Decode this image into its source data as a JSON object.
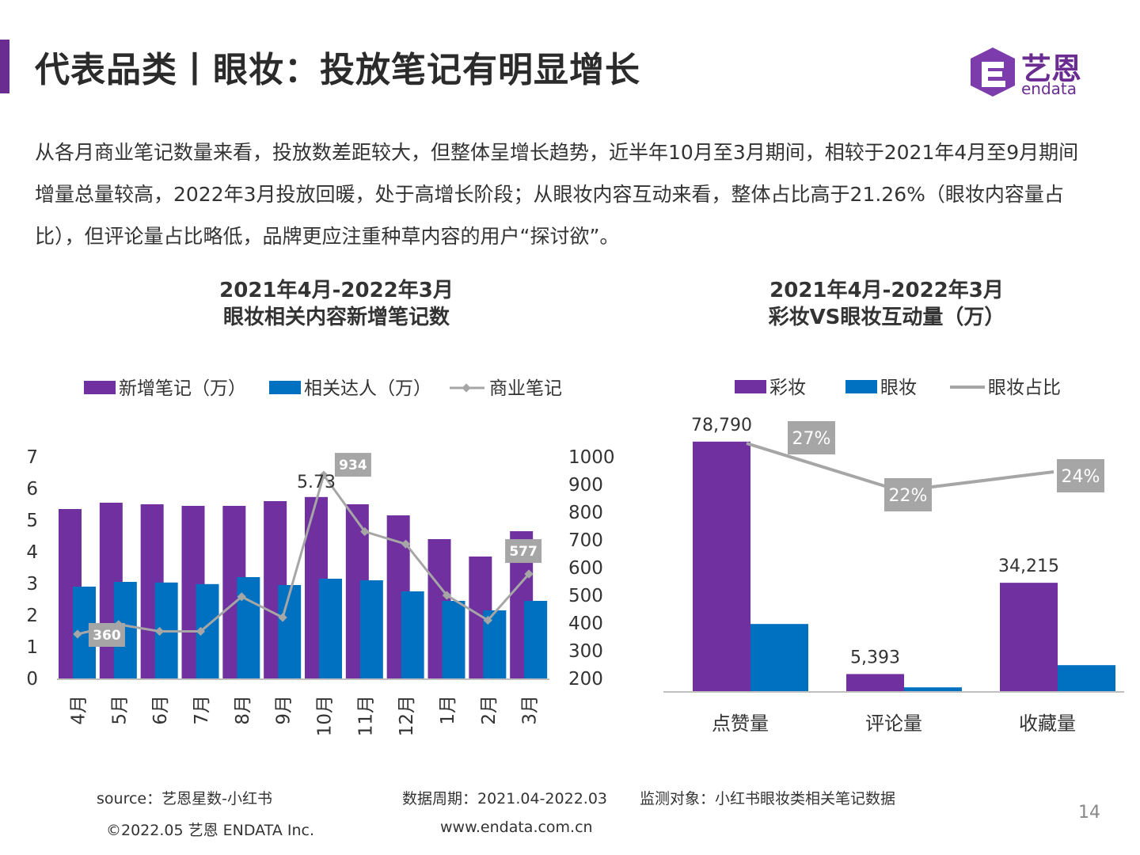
{
  "header": {
    "title": "代表品类丨眼妆：投放笔记有明显增长",
    "accent_color": "#6a2c91",
    "logo": {
      "name": "艺恩",
      "sub": "endata"
    }
  },
  "summary": "从各月商业笔记数量来看，投放数差距较大，但整体呈增长趋势，近半年10月至3月期间，相较于2021年4月至9月期间增量总量较高，2022年3月投放回暖，处于高增长阶段；从眼妆内容互动来看，整体占比高于21.26%（眼妆内容量占比），但评论量占比略低，品牌更应注重种草内容的用户“探讨欲”。",
  "chart_data": [
    {
      "type": "bar",
      "title_line1": "2021年4月-2022年3月",
      "title_line2": "眼妆相关内容新增笔记数",
      "legend": [
        "新增笔记（万）",
        "相关达人（万）",
        "商业笔记"
      ],
      "categories": [
        "4月",
        "5月",
        "6月",
        "7月",
        "8月",
        "9月",
        "10月",
        "11月",
        "12月",
        "1月",
        "2月",
        "3月"
      ],
      "series": [
        {
          "name": "新增笔记（万）",
          "kind": "bar",
          "axis": "left",
          "color": "#7030a0",
          "values": [
            5.35,
            5.55,
            5.5,
            5.45,
            5.45,
            5.6,
            5.73,
            5.5,
            5.15,
            4.4,
            3.85,
            4.65
          ]
        },
        {
          "name": "相关达人（万）",
          "kind": "bar",
          "axis": "left",
          "color": "#0070c0",
          "values": [
            2.9,
            3.05,
            3.03,
            2.98,
            3.2,
            2.95,
            3.15,
            3.1,
            2.75,
            2.45,
            2.15,
            2.45
          ]
        },
        {
          "name": "商业笔记",
          "kind": "line",
          "axis": "right",
          "color": "#a6a6a6",
          "values": [
            360,
            395,
            370,
            370,
            495,
            420,
            934,
            730,
            685,
            500,
            410,
            577
          ]
        }
      ],
      "data_labels": [
        {
          "series": 0,
          "index": 6,
          "text": "5.73"
        },
        {
          "series": 2,
          "index": 0,
          "text": "360"
        },
        {
          "series": 2,
          "index": 6,
          "text": "934"
        },
        {
          "series": 2,
          "index": 11,
          "text": "577"
        }
      ],
      "y_left": {
        "min": 0,
        "max": 7,
        "ticks": [
          "0",
          "1",
          "2",
          "3",
          "4",
          "5",
          "6",
          "7"
        ]
      },
      "y_right": {
        "min": 200,
        "max": 1000,
        "ticks": [
          "200",
          "300",
          "400",
          "500",
          "600",
          "700",
          "800",
          "900",
          "1000"
        ]
      },
      "grid": false,
      "legend_position": "top"
    },
    {
      "type": "bar",
      "title_line1": "2021年4月-2022年3月",
      "title_line2": "彩妆VS眼妆互动量（万）",
      "legend": [
        "彩妆",
        "眼妆",
        "眼妆占比"
      ],
      "categories": [
        "点赞量",
        "评论量",
        "收藏量"
      ],
      "series": [
        {
          "name": "彩妆",
          "kind": "bar",
          "color": "#7030a0",
          "values": [
            78790,
            5393,
            34215
          ]
        },
        {
          "name": "眼妆",
          "kind": "bar",
          "color": "#0070c0",
          "values": [
            21200,
            1190,
            8200
          ]
        },
        {
          "name": "眼妆占比",
          "kind": "line",
          "axis": "ratio",
          "color": "#a6a6a6",
          "values": [
            0.27,
            0.22,
            0.24
          ]
        }
      ],
      "data_labels": [
        {
          "series": 0,
          "index": 0,
          "text": "78,790"
        },
        {
          "series": 0,
          "index": 1,
          "text": "5,393"
        },
        {
          "series": 0,
          "index": 2,
          "text": "34,215"
        },
        {
          "series": 2,
          "index": 0,
          "text": "27%"
        },
        {
          "series": 2,
          "index": 1,
          "text": "22%"
        },
        {
          "series": 2,
          "index": 2,
          "text": "24%"
        }
      ],
      "y": {
        "min": 0,
        "max": 82000
      },
      "grid": false,
      "legend_position": "top"
    }
  ],
  "footer": {
    "source": "source：艺恩星数-小红书",
    "period": "数据周期：2021.04-2022.03",
    "target": "监测对象：小红书眼妆类相关笔记数据",
    "copyright": "©2022.05 艺恩 ENDATA Inc.",
    "website": "www.endata.com.cn",
    "page_number": "14"
  }
}
